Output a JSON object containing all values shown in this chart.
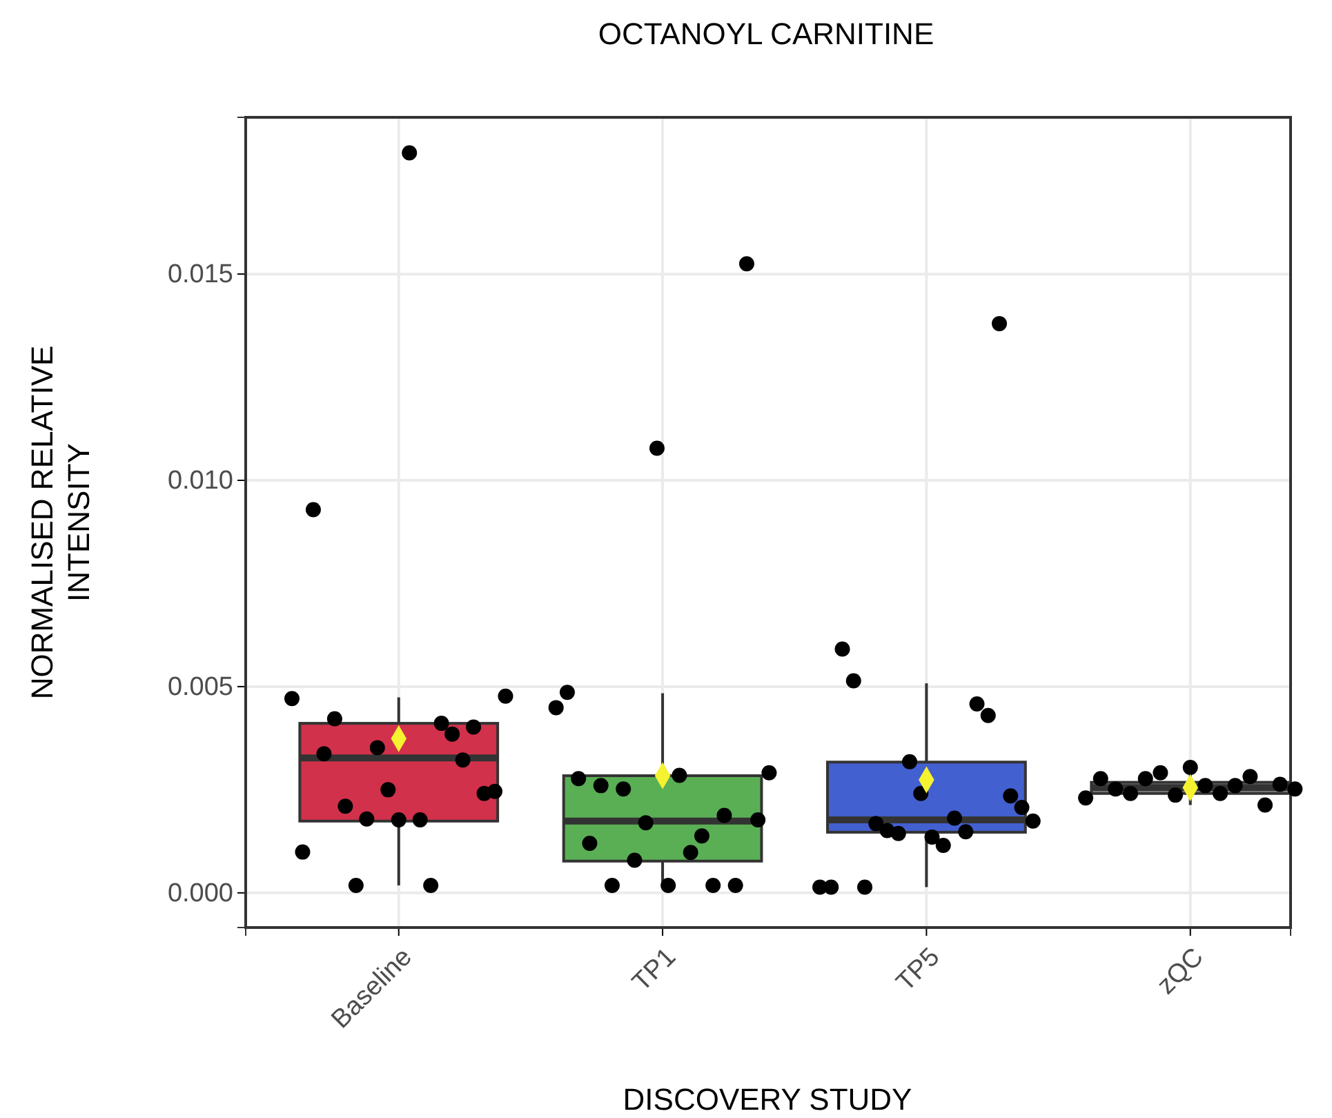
{
  "chart_data": {
    "type": "box",
    "title": "OCTANOYL CARNITINE",
    "xlabel": "DISCOVERY STUDY",
    "ylabel": "NORMALISED RELATIVE INTENSITY",
    "categories": [
      "Baseline",
      "TP1",
      "TP5",
      "zQC"
    ],
    "colors": [
      "#d1314b",
      "#5aaf55",
      "#4360d0",
      "#8c8c8c"
    ],
    "boxes": [
      {
        "low": 0.00018,
        "q1": 0.00174,
        "median": 0.00327,
        "q3": 0.00411,
        "high": 0.00474,
        "mean": 0.00374
      },
      {
        "low": 0.00018,
        "q1": 0.00077,
        "median": 0.00174,
        "q3": 0.00284,
        "high": 0.00484,
        "mean": 0.00284
      },
      {
        "low": 0.00014,
        "q1": 0.00147,
        "median": 0.00177,
        "q3": 0.00317,
        "high": 0.00508,
        "mean": 0.00274
      },
      {
        "low": 0.00213,
        "q1": 0.00241,
        "median": 0.00255,
        "q3": 0.00268,
        "high": 0.00304,
        "mean": 0.00255
      }
    ],
    "series": [
      {
        "type": "scatter",
        "color": "#000000",
        "marker": "circle",
        "values": [
          0.00471,
          0.00449,
          0.00014,
          0.0023
        ]
      },
      {
        "type": "scatter",
        "color": "#000000",
        "marker": "circle",
        "values": [
          0.00099,
          0.00486,
          0.00014,
          0.00277
        ]
      },
      {
        "type": "scatter",
        "color": "#000000",
        "marker": "circle",
        "values": [
          0.00929,
          0.00277,
          0.00591,
          0.00252
        ]
      },
      {
        "type": "scatter",
        "color": "#000000",
        "marker": "circle",
        "values": [
          0.00337,
          0.0012,
          0.00514,
          0.00241
        ]
      },
      {
        "type": "scatter",
        "color": "#000000",
        "marker": "circle",
        "values": [
          0.00422,
          0.0026,
          0.00014,
          0.00277
        ]
      },
      {
        "type": "scatter",
        "color": "#000000",
        "marker": "circle",
        "values": [
          0.0021,
          0.00018,
          0.00168,
          0.00291
        ]
      },
      {
        "type": "scatter",
        "color": "#000000",
        "marker": "circle",
        "values": [
          0.00018,
          0.00252,
          0.00151,
          0.00237
        ]
      },
      {
        "type": "scatter",
        "color": "#000000",
        "marker": "circle",
        "values": [
          0.00179,
          0.00079,
          0.00144,
          0.00304
        ]
      },
      {
        "type": "scatter",
        "color": "#000000",
        "marker": "circle",
        "values": [
          0.00352,
          0.0017,
          0.00318,
          0.0026
        ]
      },
      {
        "type": "scatter",
        "color": "#000000",
        "marker": "circle",
        "values": [
          0.0025,
          0.01078,
          0.00241,
          0.00241
        ]
      },
      {
        "type": "scatter",
        "color": "#000000",
        "marker": "circle",
        "values": [
          0.00177,
          0.00018,
          0.00135,
          0.0026
        ]
      },
      {
        "type": "scatter",
        "color": "#000000",
        "marker": "circle",
        "values": [
          0.01794,
          0.00285,
          0.00115,
          0.00282
        ]
      },
      {
        "type": "scatter",
        "color": "#000000",
        "marker": "circle",
        "values": [
          0.00177,
          0.00098,
          0.00181,
          0.00213
        ]
      },
      {
        "type": "scatter",
        "color": "#000000",
        "marker": "circle",
        "values": [
          0.00018,
          0.00138,
          0.00148,
          0.00263
        ]
      },
      {
        "type": "scatter",
        "color": "#000000",
        "marker": "circle",
        "values": [
          0.00411,
          0.00018,
          0.00458,
          0.00252
        ]
      },
      {
        "type": "scatter",
        "color": "#000000",
        "marker": "circle",
        "values": [
          0.00385,
          0.00188,
          0.0043,
          null
        ]
      },
      {
        "type": "scatter",
        "color": "#000000",
        "marker": "circle",
        "values": [
          0.00322,
          0.00018,
          0.0138,
          null
        ]
      },
      {
        "type": "scatter",
        "color": "#000000",
        "marker": "circle",
        "values": [
          0.00402,
          0.01525,
          0.00235,
          null
        ]
      },
      {
        "type": "scatter",
        "color": "#000000",
        "marker": "circle",
        "values": [
          0.00241,
          0.00177,
          0.00207,
          null
        ]
      },
      {
        "type": "scatter",
        "color": "#000000",
        "marker": "circle",
        "values": [
          0.00246,
          0.00291,
          0.00174,
          null
        ]
      },
      {
        "type": "scatter",
        "color": "#000000",
        "marker": "circle",
        "values": [
          0.00477,
          null,
          null,
          null
        ]
      }
    ],
    "ylim": [
      -0.00084,
      0.0188
    ],
    "yticks": [
      {
        "value": 0,
        "label": "0.000"
      },
      {
        "value": 0.005,
        "label": "0.005"
      },
      {
        "value": 0.01,
        "label": "0.010"
      },
      {
        "value": 0.015,
        "label": "0.015"
      }
    ],
    "grid": true
  }
}
